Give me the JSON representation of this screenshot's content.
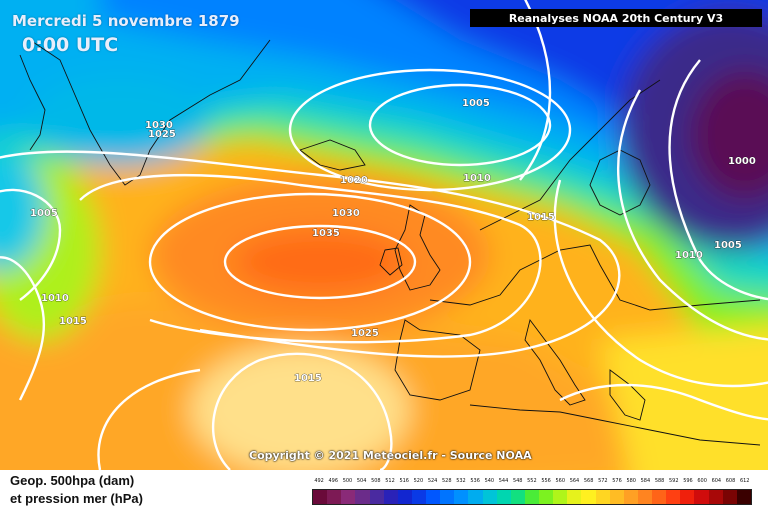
{
  "header": {
    "date": "Mercredi 5 novembre 1879",
    "time": "0:00 UTC",
    "source": "Reanalyses NOAA 20th Century V3"
  },
  "copyright": "Copyright © 2021 Meteociel.fr - Source NOAA",
  "legend": {
    "line1": "Geop. 500hpa (dam)",
    "line2": "et pression mer (hPa)",
    "scale_values": [
      "492",
      "496",
      "500",
      "504",
      "508",
      "512",
      "516",
      "520",
      "524",
      "528",
      "532",
      "536",
      "540",
      "544",
      "548",
      "552",
      "556",
      "560",
      "564",
      "568",
      "572",
      "576",
      "580",
      "584",
      "588",
      "592",
      "596",
      "600",
      "604",
      "608",
      "612"
    ],
    "scale_colors": [
      "#6a0a3a",
      "#7d1a55",
      "#8a2a78",
      "#6b2c8a",
      "#4a2aa0",
      "#2a22b8",
      "#1226d0",
      "#0a3ae6",
      "#0057ff",
      "#0074ff",
      "#0090ff",
      "#00acef",
      "#00c4d8",
      "#00d6b0",
      "#12e080",
      "#4aec38",
      "#7cf220",
      "#b0f51a",
      "#e6f21c",
      "#fff020",
      "#ffd622",
      "#ffbc24",
      "#ffa024",
      "#ff8420",
      "#ff6418",
      "#ff4012",
      "#f0200c",
      "#d00c0c",
      "#a80808",
      "#7a0404",
      "#3a0000"
    ]
  },
  "map": {
    "isobar_labels": [
      "1030",
      "1025",
      "1005",
      "1020",
      "1010",
      "1005",
      "1030",
      "1035",
      "1015",
      "1000",
      "1010",
      "1005",
      "1010",
      "1015",
      "1025",
      "1015"
    ]
  }
}
